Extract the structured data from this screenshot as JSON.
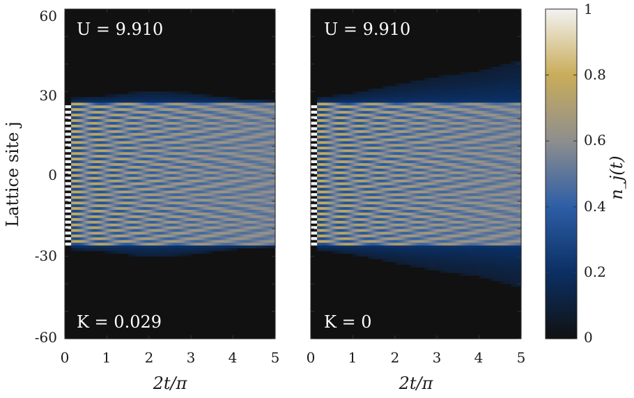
{
  "chart_data": [
    {
      "type": "heatmap",
      "panel": "left",
      "annotations": {
        "top": "U = 9.910",
        "bottom": "K = 0.029"
      },
      "xlabel": "2t/π",
      "ylabel": "Lattice site j",
      "xlim": [
        0,
        5
      ],
      "ylim": [
        -60,
        60
      ],
      "x_ticks": [
        "0",
        "1",
        "2",
        "3",
        "4",
        "5"
      ],
      "y_ticks": [
        "60",
        "30",
        "0",
        "-30",
        "-60"
      ],
      "initial_occupied_sites": [
        -26,
        26
      ],
      "spreading_edge": [
        [
          0,
          27
        ],
        [
          1,
          28
        ],
        [
          2,
          30
        ],
        [
          3,
          29
        ],
        [
          4,
          27
        ],
        [
          5,
          26
        ]
      ],
      "background": "#111111"
    },
    {
      "type": "heatmap",
      "panel": "right",
      "annotations": {
        "top": "U = 9.910",
        "bottom": "K = 0"
      },
      "xlabel": "2t/π",
      "xlim": [
        0,
        5
      ],
      "ylim": [
        -60,
        60
      ],
      "x_ticks": [
        "0",
        "1",
        "2",
        "3",
        "4",
        "5"
      ],
      "initial_occupied_sites": [
        -26,
        26
      ],
      "spreading_edge": [
        [
          0,
          27
        ],
        [
          1,
          29
        ],
        [
          2,
          32
        ],
        [
          3,
          35
        ],
        [
          4,
          37
        ],
        [
          5,
          41
        ]
      ],
      "background": "#111111"
    }
  ],
  "colorbar": {
    "label": "n_j(t)",
    "range": [
      0,
      1
    ],
    "ticks": [
      "0",
      "0.2",
      "0.4",
      "0.6",
      "0.8",
      "1"
    ],
    "colormap": [
      "#111111",
      "#0b2f63",
      "#2d5ea6",
      "#8e8e8e",
      "#c9ad5a",
      "#f2f2f2"
    ]
  }
}
